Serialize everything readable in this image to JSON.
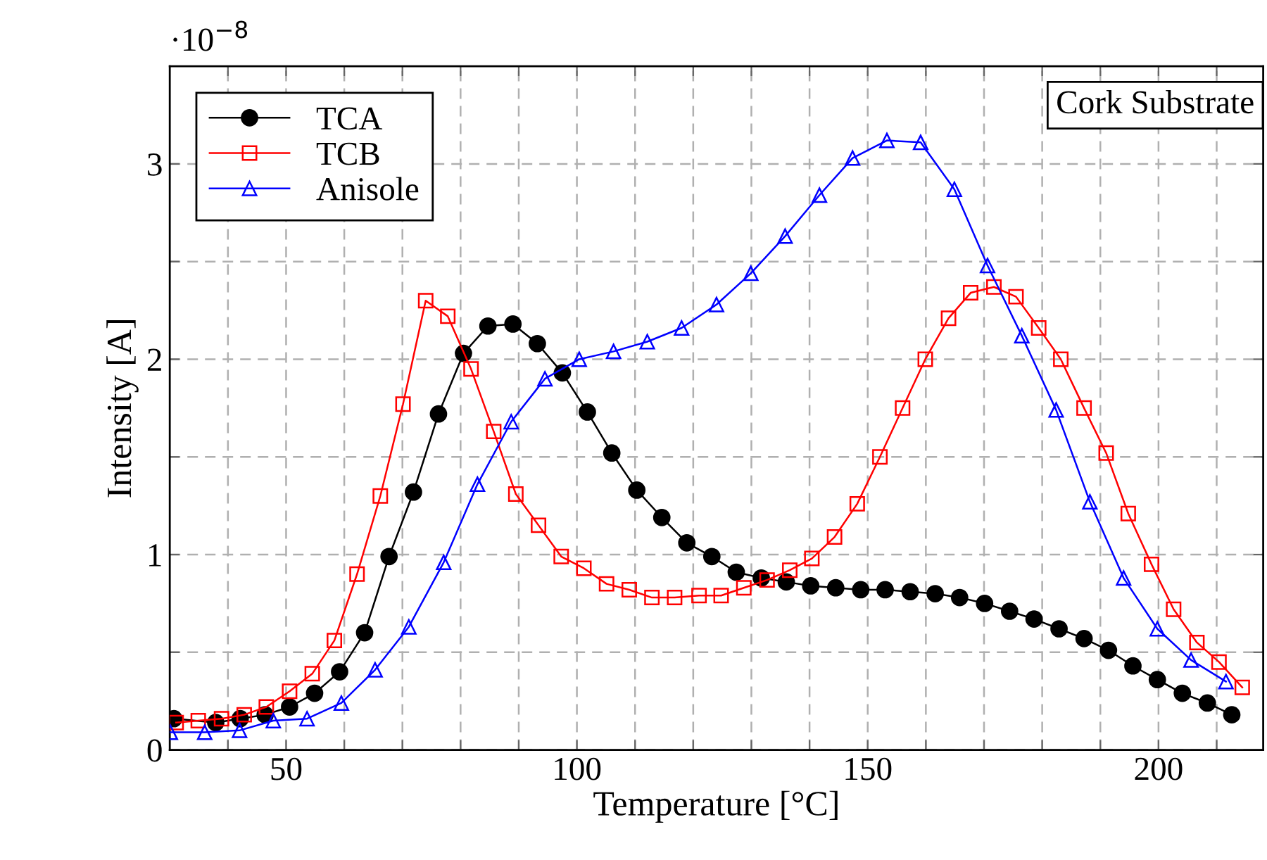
{
  "chart_data": {
    "type": "line",
    "xlabel": "Temperature [°C]",
    "ylabel": "Intensity [A]",
    "annotations": [
      "·10$^{−8}$",
      "Cork Substrate"
    ],
    "xlim": [
      30,
      218
    ],
    "ylim": [
      0,
      3.5
    ],
    "xticks": [
      {
        "value": 40,
        "label": null
      },
      50,
      {
        "value": 60,
        "label": null
      },
      {
        "value": 70,
        "label": null
      },
      {
        "value": 80,
        "label": null
      },
      {
        "value": 90,
        "label": null
      },
      100,
      {
        "value": 110,
        "label": null
      },
      {
        "value": 120,
        "label": null
      },
      {
        "value": 130,
        "label": null
      },
      {
        "value": 140,
        "label": null
      },
      150,
      {
        "value": 160,
        "label": null
      },
      {
        "value": 170,
        "label": null
      },
      {
        "value": 180,
        "label": null
      },
      {
        "value": 190,
        "label": null
      },
      200,
      {
        "value": 210,
        "label": null
      }
    ],
    "yticks": [
      0,
      {
        "value": 0.5,
        "label": null
      },
      1,
      {
        "value": 1.5,
        "label": null
      },
      2,
      {
        "value": 2.5,
        "label": null
      },
      3
    ],
    "grid": true,
    "legend": "top left",
    "line_style": "solid",
    "series": [
      {
        "name": "TCA",
        "color": "#000000",
        "marker": "circle",
        "x": [
          30.7,
          37.9,
          42.1,
          46.4,
          50.6,
          54.9,
          59.2,
          63.5,
          67.7,
          71.9,
          76.2,
          80.5,
          84.7,
          89.0,
          93.2,
          97.5,
          101.8,
          106.0,
          110.3,
          114.6,
          118.9,
          123.2,
          127.4,
          131.7,
          136.0,
          140.2,
          144.5,
          148.8,
          153.0,
          157.3,
          161.6,
          165.8,
          170.1,
          174.4,
          178.6,
          182.9,
          187.2,
          191.4,
          195.6,
          199.8,
          204.1,
          208.4,
          212.6
        ],
        "values": [
          0.16,
          0.14,
          0.16,
          0.18,
          0.22,
          0.29,
          0.4,
          0.6,
          0.99,
          1.32,
          1.72,
          2.03,
          2.17,
          2.18,
          2.08,
          1.93,
          1.73,
          1.52,
          1.33,
          1.19,
          1.06,
          0.99,
          0.91,
          0.88,
          0.86,
          0.84,
          0.83,
          0.82,
          0.82,
          0.81,
          0.8,
          0.78,
          0.75,
          0.71,
          0.67,
          0.62,
          0.57,
          0.51,
          0.43,
          0.36,
          0.29,
          0.24,
          0.18
        ]
      },
      {
        "name": "TCB",
        "color": "#ff0000",
        "marker": "square",
        "x": [
          31.1,
          34.9,
          38.9,
          42.8,
          46.6,
          50.6,
          54.5,
          58.3,
          62.2,
          66.2,
          70.1,
          74.0,
          77.8,
          81.8,
          85.7,
          89.5,
          93.4,
          97.3,
          101.2,
          105.1,
          109.0,
          112.9,
          116.8,
          121.0,
          124.8,
          128.7,
          132.7,
          136.6,
          140.4,
          144.3,
          148.2,
          152.1,
          156.0,
          159.9,
          163.9,
          167.7,
          171.7,
          175.5,
          179.4,
          183.2,
          187.2,
          191.0,
          194.8,
          198.8,
          202.6,
          206.6,
          210.4,
          214.4
        ],
        "values": [
          0.14,
          0.15,
          0.16,
          0.18,
          0.22,
          0.3,
          0.39,
          0.56,
          0.9,
          1.3,
          1.77,
          2.3,
          2.22,
          1.95,
          1.63,
          1.31,
          1.15,
          0.99,
          0.93,
          0.85,
          0.82,
          0.78,
          0.78,
          0.79,
          0.79,
          0.83,
          0.87,
          0.92,
          0.98,
          1.09,
          1.26,
          1.5,
          1.75,
          2.0,
          2.21,
          2.34,
          2.37,
          2.32,
          2.16,
          2.0,
          1.75,
          1.52,
          1.21,
          0.95,
          0.72,
          0.55,
          0.45,
          0.32
        ]
      },
      {
        "name": "Anisole",
        "color": "#0000ff",
        "marker": "triangle",
        "x": [
          30.1,
          36.0,
          42.0,
          47.8,
          53.6,
          59.5,
          65.3,
          71.1,
          77.1,
          82.9,
          88.7,
          94.5,
          100.4,
          106.3,
          112.1,
          118.0,
          124.0,
          129.9,
          135.8,
          141.7,
          147.4,
          153.3,
          159.1,
          164.9,
          170.6,
          176.5,
          182.4,
          188.2,
          194.0,
          199.8,
          205.6,
          211.6
        ],
        "values": [
          0.09,
          0.09,
          0.1,
          0.15,
          0.16,
          0.24,
          0.41,
          0.63,
          0.96,
          1.36,
          1.68,
          1.9,
          2.0,
          2.04,
          2.09,
          2.16,
          2.28,
          2.44,
          2.63,
          2.84,
          3.03,
          3.12,
          3.11,
          2.87,
          2.48,
          2.12,
          1.74,
          1.27,
          0.88,
          0.62,
          0.46,
          0.35
        ]
      }
    ]
  }
}
